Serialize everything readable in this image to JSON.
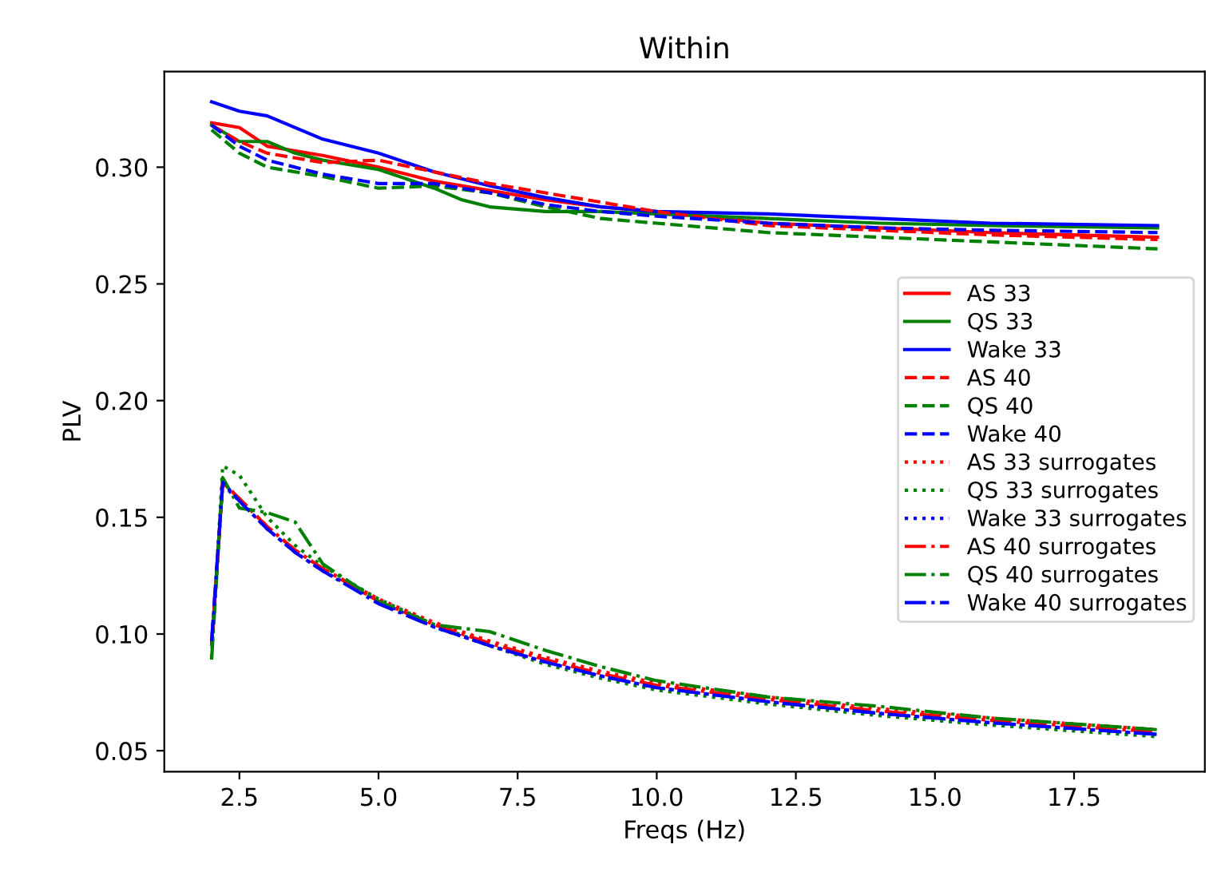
{
  "chart_data": {
    "type": "line",
    "title": "Within",
    "xlabel": "Freqs (Hz)",
    "ylabel": "PLV",
    "legend": "right",
    "xlim": [
      1.15,
      19.85
    ],
    "ylim": [
      0.041,
      0.341
    ],
    "xticks": [
      2.5,
      {
        "value": 5,
        "label": "5.0"
      },
      7.5,
      {
        "value": 10,
        "label": "10.0"
      },
      12.5,
      {
        "value": 15,
        "label": "15.0"
      },
      17.5
    ],
    "yticks": [
      {
        "value": 0.05,
        "label": "0.05"
      },
      {
        "value": 0.1,
        "label": "0.10"
      },
      {
        "value": 0.15,
        "label": "0.15"
      },
      {
        "value": 0.2,
        "label": "0.20"
      },
      {
        "value": 0.25,
        "label": "0.25"
      },
      {
        "value": 0.3,
        "label": "0.30"
      }
    ],
    "series": [
      {
        "name": "AS 33",
        "color": "#ff0000",
        "line_style": "solid",
        "x": [
          2,
          2.5,
          3,
          4,
          5,
          6,
          7,
          8,
          9,
          10,
          12,
          14,
          16,
          19
        ],
        "values": [
          0.319,
          0.317,
          0.309,
          0.305,
          0.3,
          0.294,
          0.29,
          0.286,
          0.283,
          0.281,
          0.276,
          0.274,
          0.272,
          0.27
        ]
      },
      {
        "name": "QS 33",
        "color": "#008000",
        "line_style": "solid",
        "x": [
          2,
          2.5,
          3,
          3.5,
          4,
          5,
          6,
          6.5,
          7,
          8,
          9,
          10,
          12,
          14,
          16,
          19
        ],
        "values": [
          0.318,
          0.311,
          0.311,
          0.306,
          0.303,
          0.299,
          0.291,
          0.286,
          0.283,
          0.281,
          0.281,
          0.28,
          0.278,
          0.276,
          0.275,
          0.274
        ]
      },
      {
        "name": "Wake 33",
        "color": "#0000ff",
        "line_style": "solid",
        "x": [
          2,
          2.5,
          3,
          4,
          5,
          6,
          7,
          8,
          9,
          10,
          12,
          14,
          16,
          19
        ],
        "values": [
          0.328,
          0.324,
          0.322,
          0.312,
          0.306,
          0.298,
          0.292,
          0.287,
          0.283,
          0.281,
          0.28,
          0.278,
          0.276,
          0.275
        ]
      },
      {
        "name": "AS 40",
        "color": "#ff0000",
        "line_style": "dashed",
        "x": [
          2,
          2.5,
          3,
          4,
          5,
          6,
          7,
          8,
          9,
          10,
          12,
          14,
          16,
          19
        ],
        "values": [
          0.318,
          0.311,
          0.306,
          0.302,
          0.303,
          0.298,
          0.293,
          0.289,
          0.285,
          0.281,
          0.275,
          0.273,
          0.271,
          0.269
        ]
      },
      {
        "name": "QS 40",
        "color": "#008000",
        "line_style": "dashed",
        "x": [
          2,
          2.5,
          3,
          4,
          5,
          6,
          7,
          8,
          9,
          10,
          12,
          14,
          16,
          19
        ],
        "values": [
          0.316,
          0.306,
          0.3,
          0.296,
          0.291,
          0.292,
          0.289,
          0.283,
          0.278,
          0.276,
          0.272,
          0.27,
          0.268,
          0.265
        ]
      },
      {
        "name": "Wake 40",
        "color": "#0000ff",
        "line_style": "dashed",
        "x": [
          2,
          2.5,
          3,
          4,
          5,
          6,
          7,
          8,
          9,
          10,
          12,
          14,
          16,
          19
        ],
        "values": [
          0.318,
          0.309,
          0.303,
          0.297,
          0.293,
          0.293,
          0.289,
          0.284,
          0.281,
          0.279,
          0.276,
          0.274,
          0.273,
          0.272
        ]
      },
      {
        "name": "AS 33 surrogates",
        "color": "#ff0000",
        "line_style": "dotted",
        "x": [
          2,
          2.2,
          2.5,
          3,
          3.5,
          4,
          5,
          6,
          7,
          8,
          9,
          10,
          12,
          14,
          16,
          19
        ],
        "values": [
          0.095,
          0.165,
          0.158,
          0.146,
          0.136,
          0.128,
          0.115,
          0.105,
          0.097,
          0.09,
          0.084,
          0.079,
          0.073,
          0.068,
          0.064,
          0.059
        ]
      },
      {
        "name": "QS 33 surrogates",
        "color": "#008000",
        "line_style": "dotted",
        "x": [
          2,
          2.2,
          2.5,
          3,
          3.5,
          4,
          5,
          6,
          7,
          8,
          9,
          10,
          12,
          14,
          16,
          19
        ],
        "values": [
          0.09,
          0.172,
          0.168,
          0.15,
          0.138,
          0.129,
          0.115,
          0.104,
          0.095,
          0.087,
          0.081,
          0.076,
          0.07,
          0.065,
          0.061,
          0.056
        ]
      },
      {
        "name": "Wake 33 surrogates",
        "color": "#0000ff",
        "line_style": "dotted",
        "x": [
          2,
          2.2,
          2.5,
          3,
          3.5,
          4,
          5,
          6,
          7,
          8,
          9,
          10,
          12,
          14,
          16,
          19
        ],
        "values": [
          0.096,
          0.164,
          0.157,
          0.145,
          0.135,
          0.127,
          0.114,
          0.103,
          0.095,
          0.088,
          0.082,
          0.077,
          0.071,
          0.066,
          0.062,
          0.057
        ]
      },
      {
        "name": "AS 40 surrogates",
        "color": "#ff0000",
        "line_style": "dashdot",
        "x": [
          2,
          2.2,
          2.5,
          3,
          3.5,
          4,
          5,
          6,
          7,
          8,
          9,
          10,
          12,
          14,
          16,
          19
        ],
        "values": [
          0.095,
          0.165,
          0.158,
          0.146,
          0.136,
          0.128,
          0.114,
          0.104,
          0.096,
          0.089,
          0.083,
          0.078,
          0.072,
          0.067,
          0.063,
          0.058
        ]
      },
      {
        "name": "QS 40 surrogates",
        "color": "#008000",
        "line_style": "dashdot",
        "x": [
          2,
          2.2,
          2.5,
          3,
          3.5,
          4,
          5,
          6,
          7,
          8,
          9,
          10,
          12,
          14,
          16,
          19
        ],
        "values": [
          0.089,
          0.167,
          0.154,
          0.152,
          0.148,
          0.13,
          0.114,
          0.104,
          0.101,
          0.093,
          0.086,
          0.08,
          0.073,
          0.069,
          0.064,
          0.059
        ]
      },
      {
        "name": "Wake 40 surrogates",
        "color": "#0000ff",
        "line_style": "dashdot",
        "x": [
          2,
          2.2,
          2.5,
          3,
          3.5,
          4,
          5,
          6,
          7,
          8,
          9,
          10,
          12,
          14,
          16,
          19
        ],
        "values": [
          0.097,
          0.165,
          0.157,
          0.145,
          0.135,
          0.127,
          0.113,
          0.103,
          0.095,
          0.088,
          0.082,
          0.077,
          0.071,
          0.066,
          0.062,
          0.057
        ]
      }
    ]
  }
}
